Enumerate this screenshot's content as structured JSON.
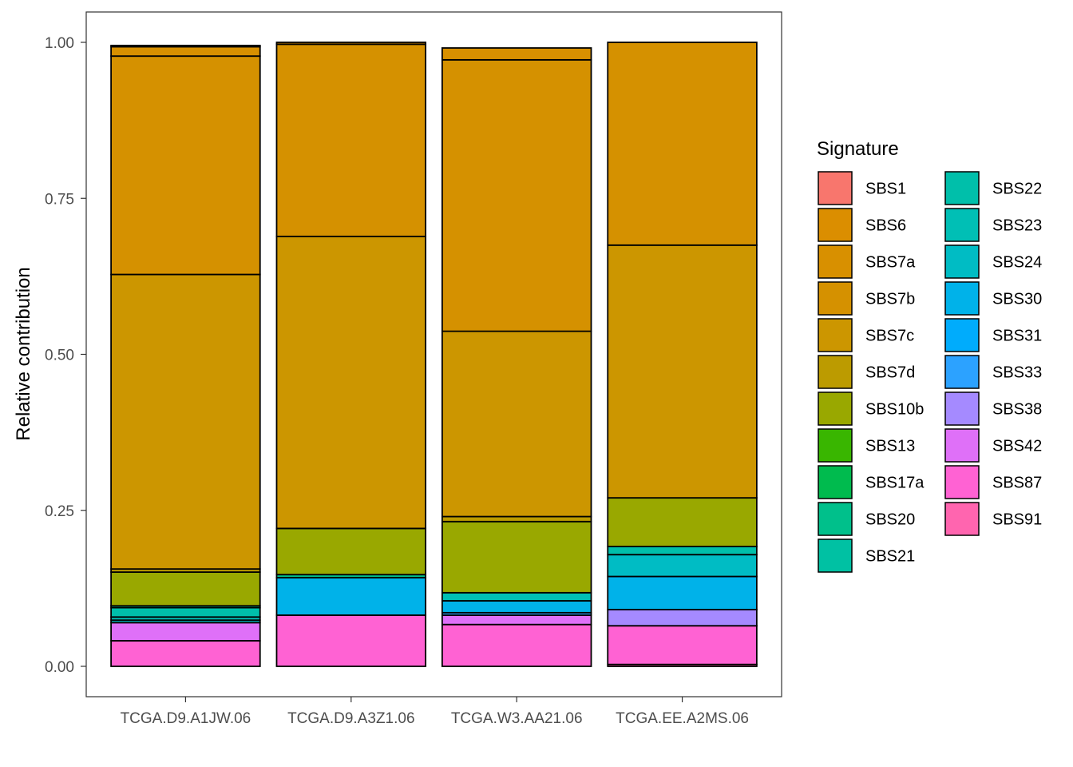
{
  "chart_data": {
    "type": "bar",
    "stacked": true,
    "title": "",
    "xlabel": "",
    "ylabel": "Relative contribution",
    "ylim": [
      0,
      1.0
    ],
    "yticks": [
      0.0,
      0.25,
      0.5,
      0.75,
      1.0
    ],
    "ytick_labels": [
      "0.00",
      "0.25",
      "0.50",
      "0.75",
      "1.00"
    ],
    "grid": false,
    "legend_position": "right",
    "legend_title": "Signature",
    "categories": [
      "TCGA.D9.A1JW.06",
      "TCGA.D9.A3Z1.06",
      "TCGA.W3.AA21.06",
      "TCGA.EE.A2MS.06"
    ],
    "series": [
      {
        "name": "SBS1",
        "color": "#F8766D",
        "values": [
          0.0,
          0.0,
          0.0,
          0.0
        ]
      },
      {
        "name": "SBS6",
        "color": "#DB8E00",
        "values": [
          0.002,
          0.003,
          0.0,
          0.0
        ]
      },
      {
        "name": "SBS7a",
        "color": "#D89000",
        "values": [
          0.015,
          0.0,
          0.019,
          0.0
        ]
      },
      {
        "name": "SBS7b",
        "color": "#D59100",
        "values": [
          0.35,
          0.308,
          0.435,
          0.325
        ]
      },
      {
        "name": "SBS7c",
        "color": "#CC9600",
        "values": [
          0.472,
          0.468,
          0.297,
          0.405
        ]
      },
      {
        "name": "SBS7d",
        "color": "#BC9B00",
        "values": [
          0.005,
          0.0,
          0.008,
          0.0
        ]
      },
      {
        "name": "SBS10b",
        "color": "#99A800",
        "values": [
          0.054,
          0.074,
          0.114,
          0.078
        ]
      },
      {
        "name": "SBS13",
        "color": "#39B600",
        "values": [
          0.0,
          0.0,
          0.0,
          0.0
        ]
      },
      {
        "name": "SBS17a",
        "color": "#00BB4E",
        "values": [
          0.0,
          0.0,
          0.0,
          0.0
        ]
      },
      {
        "name": "SBS20",
        "color": "#00C08B",
        "values": [
          0.003,
          0.005,
          0.0,
          0.0
        ]
      },
      {
        "name": "SBS21",
        "color": "#00C1A3",
        "values": [
          0.0,
          0.0,
          0.0,
          0.0
        ]
      },
      {
        "name": "SBS22",
        "color": "#00BFAA",
        "values": [
          0.015,
          0.0,
          0.0,
          0.013
        ]
      },
      {
        "name": "SBS23",
        "color": "#00BFB5",
        "values": [
          0.005,
          0.0,
          0.013,
          0.0
        ]
      },
      {
        "name": "SBS24",
        "color": "#00BCC4",
        "values": [
          0.004,
          0.0,
          0.0,
          0.035
        ]
      },
      {
        "name": "SBS30",
        "color": "#00B2E9",
        "values": [
          0.0,
          0.06,
          0.019,
          0.053
        ]
      },
      {
        "name": "SBS31",
        "color": "#00ACFC",
        "values": [
          0.0,
          0.0,
          0.0,
          0.0
        ]
      },
      {
        "name": "SBS33",
        "color": "#2CA2FF",
        "values": [
          0.0,
          0.0,
          0.004,
          0.0
        ]
      },
      {
        "name": "SBS38",
        "color": "#A58AFF",
        "values": [
          0.0,
          0.0,
          0.0,
          0.026
        ]
      },
      {
        "name": "SBS42",
        "color": "#DF70F8",
        "values": [
          0.029,
          0.0,
          0.015,
          0.0
        ]
      },
      {
        "name": "SBS87",
        "color": "#FF62D3",
        "values": [
          0.041,
          0.082,
          0.067,
          0.062
        ]
      },
      {
        "name": "SBS91",
        "color": "#FF65AF",
        "values": [
          0.0,
          0.0,
          0.0,
          0.003
        ]
      }
    ]
  }
}
